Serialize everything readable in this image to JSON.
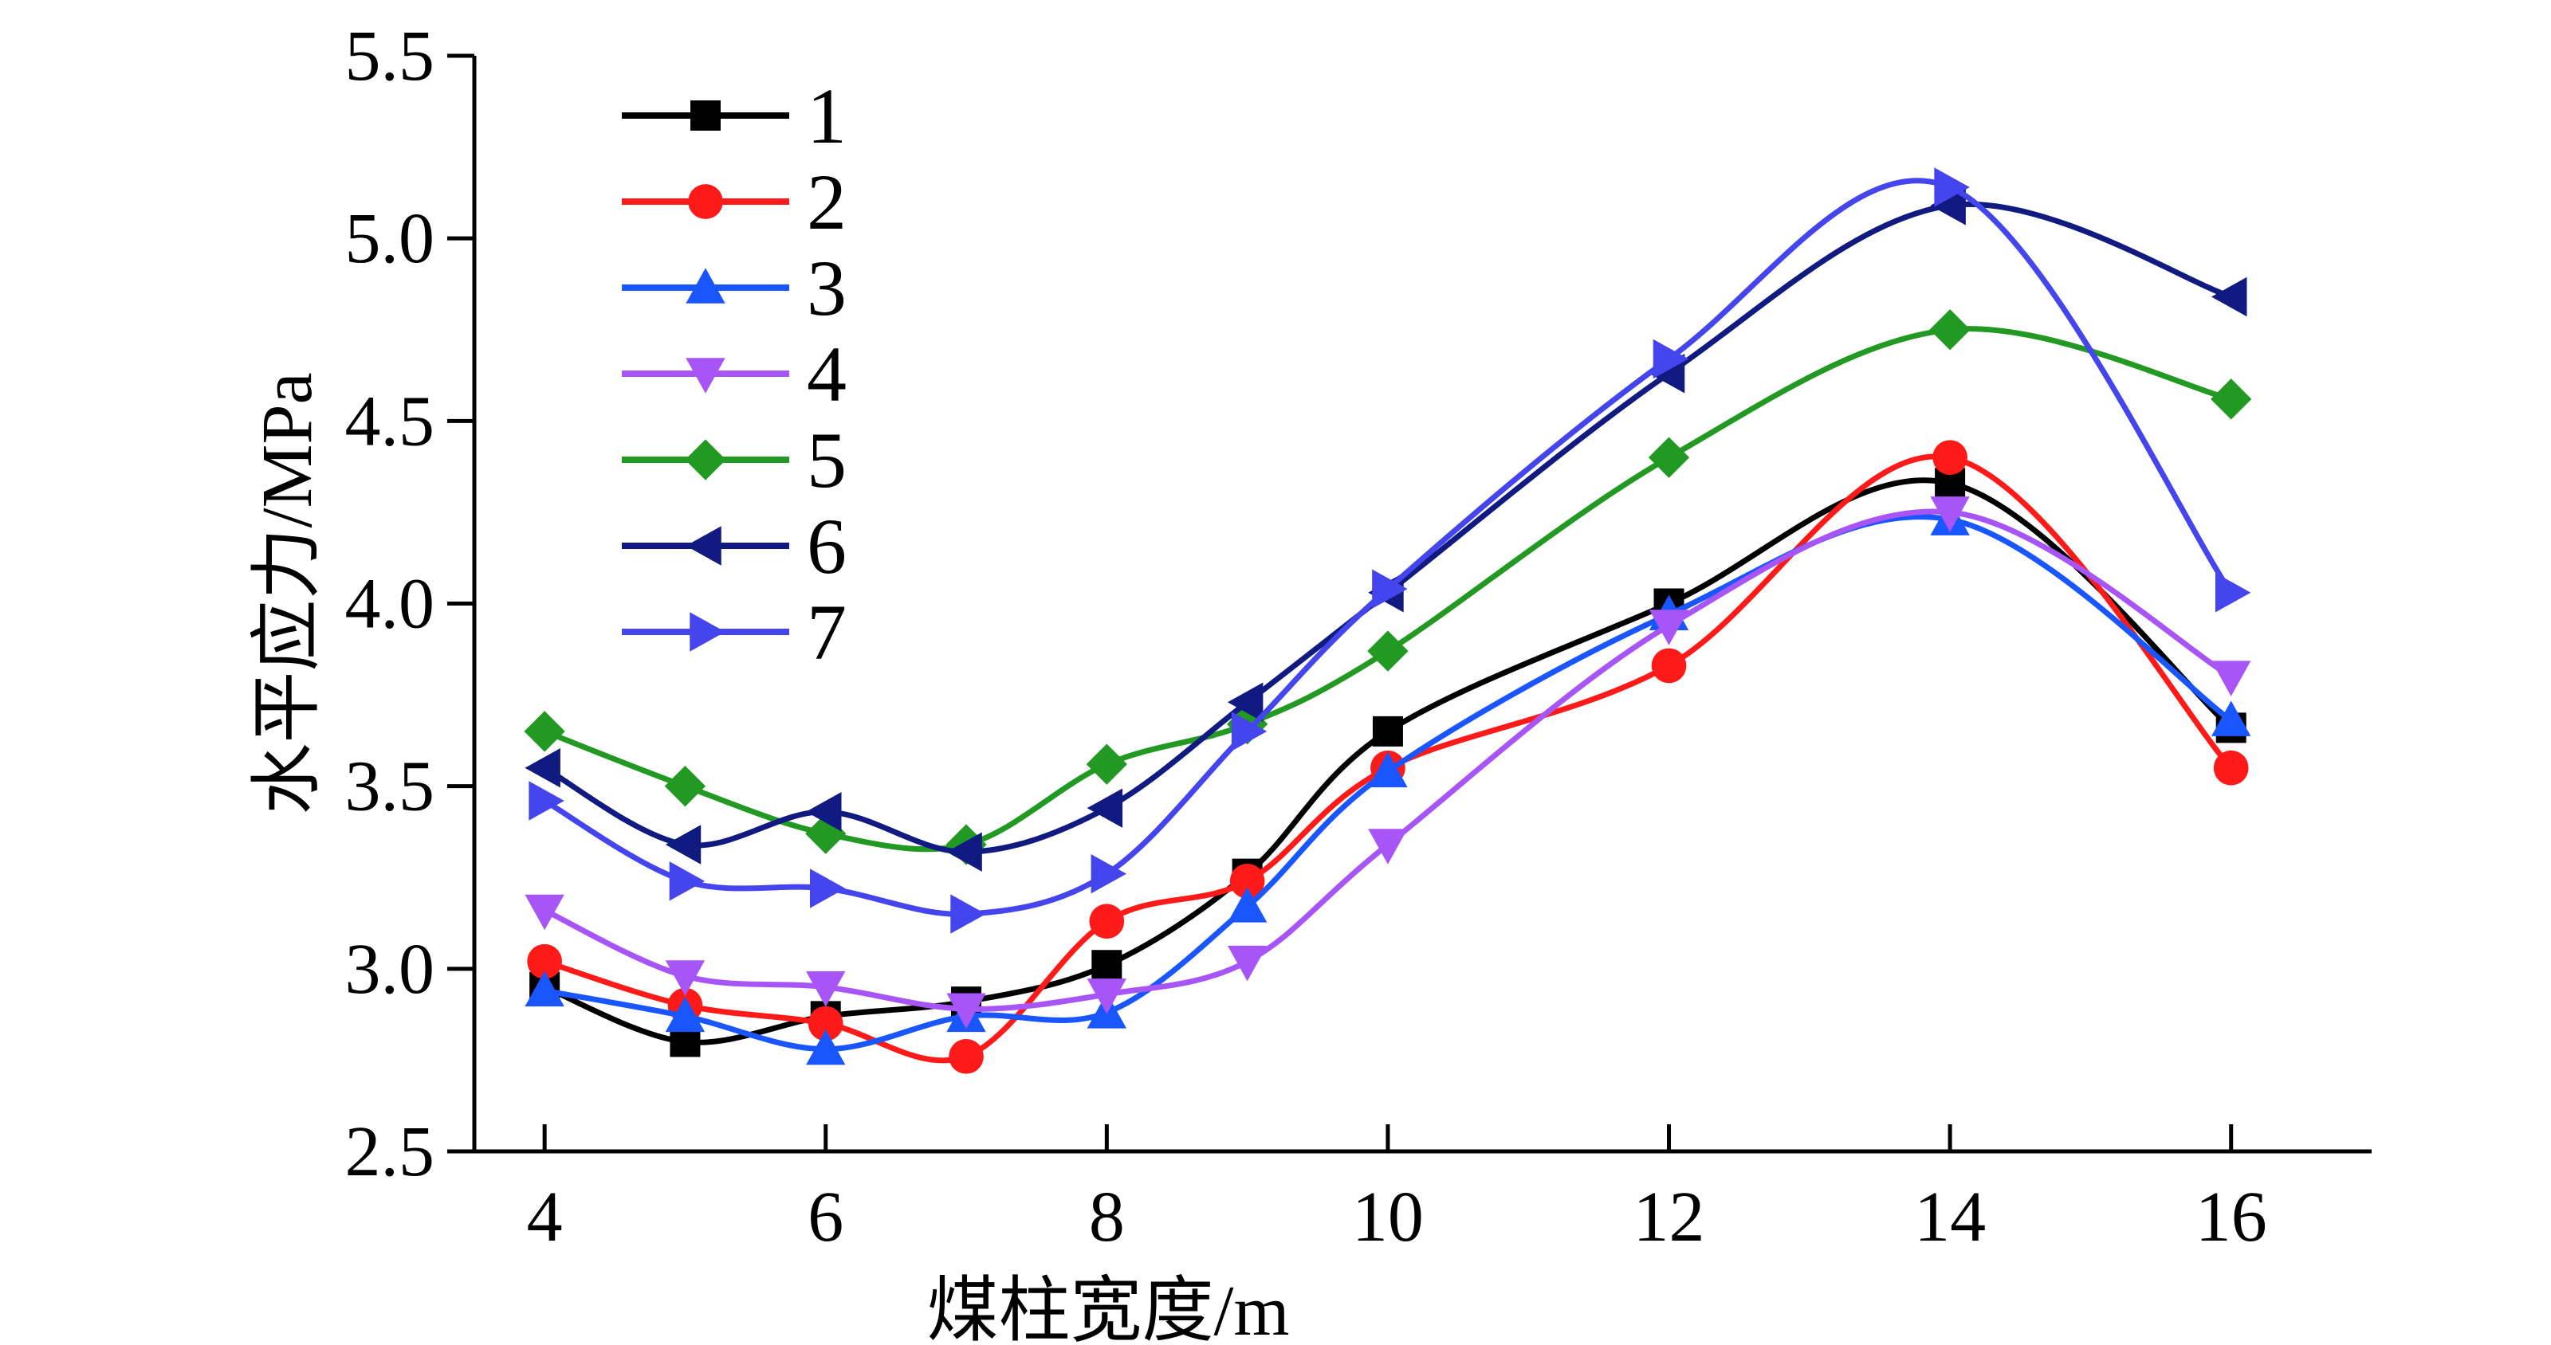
{
  "chart_data": {
    "type": "line",
    "xlabel": "煤柱宽度/m",
    "ylabel": "水平应力/MPa",
    "x": [
      4,
      5,
      6,
      7,
      8,
      9,
      10,
      12,
      14,
      16
    ],
    "xticks": [
      4,
      6,
      8,
      10,
      12,
      14,
      16
    ],
    "yticks": [
      2.5,
      3.0,
      3.5,
      4.0,
      4.5,
      5.0,
      5.5
    ],
    "ylim": [
      2.5,
      5.5
    ],
    "grid": false,
    "legend_position": "top-left",
    "series": [
      {
        "name": "1",
        "color": "#000000",
        "marker": "square",
        "values": [
          2.95,
          2.8,
          2.87,
          2.91,
          3.01,
          3.26,
          3.65,
          4.0,
          4.33,
          3.66
        ]
      },
      {
        "name": "2",
        "color": "#ff1a1a",
        "marker": "circle",
        "values": [
          3.02,
          2.9,
          2.85,
          2.76,
          3.13,
          3.24,
          3.55,
          3.83,
          4.4,
          3.55
        ]
      },
      {
        "name": "3",
        "color": "#1a56ff",
        "marker": "triangle-up",
        "values": [
          2.94,
          2.87,
          2.78,
          2.87,
          2.88,
          3.17,
          3.54,
          3.97,
          4.23,
          3.68
        ]
      },
      {
        "name": "4",
        "color": "#a855f7",
        "marker": "triangle-down",
        "values": [
          3.16,
          2.98,
          2.95,
          2.89,
          2.93,
          3.02,
          3.34,
          3.94,
          4.25,
          3.8
        ]
      },
      {
        "name": "5",
        "color": "#229922",
        "marker": "diamond",
        "values": [
          3.65,
          3.5,
          3.37,
          3.34,
          3.56,
          3.67,
          3.87,
          4.4,
          4.75,
          4.56
        ]
      },
      {
        "name": "6",
        "color": "#101a80",
        "marker": "triangle-left",
        "values": [
          3.55,
          3.34,
          3.43,
          3.32,
          3.44,
          3.73,
          4.03,
          4.63,
          5.09,
          4.84
        ]
      },
      {
        "name": "7",
        "color": "#4545ee",
        "marker": "triangle-right",
        "values": [
          3.46,
          3.24,
          3.22,
          3.15,
          3.26,
          3.65,
          4.04,
          4.67,
          5.14,
          4.03
        ]
      }
    ]
  }
}
